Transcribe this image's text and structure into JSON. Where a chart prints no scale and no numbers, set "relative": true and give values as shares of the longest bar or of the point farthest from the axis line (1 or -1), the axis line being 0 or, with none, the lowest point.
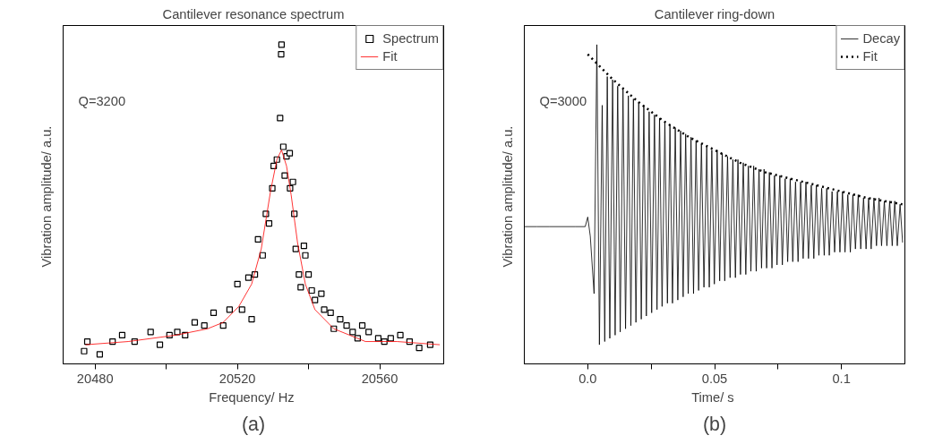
{
  "chart_data": [
    {
      "type": "scatter",
      "title": "Cantilever resonance spectrum",
      "xlabel": "Frequency/  Hz",
      "ylabel": "Vibration amplitude/  a.u.",
      "relative": true,
      "tick_labels": "x",
      "grid": false,
      "legend": "top right",
      "xlim": [
        20471,
        20578
      ],
      "xticks": [
        20480,
        {
          "value": 20500,
          "label": null
        },
        20520,
        {
          "value": 20540,
          "label": null
        },
        20560
      ],
      "annotations": [
        "Q=3200",
        "(a)"
      ],
      "series": [
        {
          "name": "Spectrum",
          "marker": "square",
          "color": "#000000",
          "x": [
            20476.9,
            20477.8,
            20481.3,
            20484.9,
            20487.6,
            20491.1,
            20495.6,
            20498.2,
            20500.9,
            20503.1,
            20505.3,
            20508,
            20510.7,
            20513.3,
            20516,
            20517.8,
            20520,
            20521.3,
            20523.1,
            20524,
            20524.9,
            20525.8,
            20527.1,
            20528,
            20528.9,
            20529.8,
            20530.2,
            20531.1,
            20532,
            20532.3,
            20532.4,
            20532.9,
            20533.3,
            20533.8,
            20534.7,
            20534.8,
            20535.6,
            20536,
            20536.4,
            20537.3,
            20537.8,
            20538.7,
            20539.1,
            20540,
            20540.9,
            20541.8,
            20543.6,
            20544.4,
            20546.2,
            20547.1,
            20548.9,
            20550.7,
            20552.4,
            20553.8,
            20555.1,
            20556.9,
            20559.6,
            20561.3,
            20563.1,
            20565.8,
            20568.4,
            20571.1,
            20574.2
          ],
          "values": [
            0.04,
            0.07,
            0.03,
            0.07,
            0.09,
            0.07,
            0.1,
            0.06,
            0.09,
            0.1,
            0.09,
            0.13,
            0.12,
            0.16,
            0.12,
            0.17,
            0.25,
            0.17,
            0.27,
            0.14,
            0.28,
            0.39,
            0.34,
            0.47,
            0.44,
            0.55,
            0.62,
            0.64,
            0.77,
            0.97,
            1.0,
            0.68,
            0.59,
            0.65,
            0.66,
            0.55,
            0.57,
            0.47,
            0.36,
            0.28,
            0.24,
            0.37,
            0.34,
            0.28,
            0.23,
            0.2,
            0.22,
            0.17,
            0.16,
            0.11,
            0.14,
            0.12,
            0.1,
            0.08,
            0.12,
            0.1,
            0.08,
            0.07,
            0.08,
            0.09,
            0.07,
            0.05,
            0.06
          ]
        },
        {
          "name": "Fit",
          "type": "line",
          "line_style": "solid",
          "color": "#ff0000",
          "x": [
            20477.3,
            20489.3,
            20502.7,
            20511.6,
            20516,
            20520.4,
            20524,
            20526.7,
            20529.3,
            20531.1,
            20532.4,
            20533.8,
            20535.1,
            20536.9,
            20539.1,
            20541.8,
            20547.1,
            20556,
            20564.9,
            20576.9
          ],
          "values": [
            0.06,
            0.07,
            0.09,
            0.11,
            0.13,
            0.18,
            0.25,
            0.36,
            0.54,
            0.64,
            0.67,
            0.62,
            0.53,
            0.38,
            0.25,
            0.17,
            0.11,
            0.07,
            0.07,
            0.06
          ]
        }
      ]
    },
    {
      "type": "line",
      "title": "Cantilever ring-down",
      "xlabel": "Time/  s",
      "ylabel": "Vibration amplitude/  a.u.",
      "relative": true,
      "tick_labels": "x",
      "grid": false,
      "legend": "top right",
      "xlim": [
        -0.025,
        0.125
      ],
      "xticks": [
        {
          "value": 0,
          "label": "0.0"
        },
        {
          "value": 0.025,
          "label": null
        },
        0.05,
        {
          "value": 0.075,
          "label": null
        },
        0.1
      ],
      "annotations": [
        "Q=3000",
        "(b)"
      ],
      "series": [
        {
          "name": "Decay",
          "line_style": "solid",
          "color": "#000000",
          "x": [
            -0.0248,
            -0.02,
            -0.015,
            -0.01,
            -0.005,
            -0.001,
            0.0,
            0.001,
            0.0025,
            0.0036,
            0.0046,
            0.0057,
            0.0067,
            0.0077,
            0.0087,
            0.0098,
            0.0108,
            0.0118,
            0.0128,
            0.0139,
            0.0149,
            0.016,
            0.017,
            0.018,
            0.019,
            0.0201,
            0.0211,
            0.0221,
            0.0231,
            0.0242,
            0.0252,
            0.0263,
            0.0273,
            0.0283,
            0.0293,
            0.0304,
            0.0314,
            0.0324,
            0.0334,
            0.0345,
            0.0355,
            0.0366,
            0.0376,
            0.0386,
            0.0396,
            0.0407,
            0.0417,
            0.0427,
            0.0437,
            0.0448,
            0.0458,
            0.0469,
            0.0479,
            0.0489,
            0.0499,
            0.051,
            0.052,
            0.053,
            0.054,
            0.0551,
            0.0561,
            0.0572,
            0.0582,
            0.0592,
            0.0602,
            0.0613,
            0.0623,
            0.0633,
            0.0643,
            0.0654,
            0.0664,
            0.0675,
            0.0685,
            0.0695,
            0.0705,
            0.0716,
            0.0726,
            0.0736,
            0.0746,
            0.0757,
            0.0767,
            0.0778,
            0.0788,
            0.0798,
            0.0808,
            0.0819,
            0.0829,
            0.0839,
            0.0849,
            0.086,
            0.087,
            0.0881,
            0.0891,
            0.0901,
            0.0911,
            0.0922,
            0.0932,
            0.0942,
            0.0952,
            0.0963,
            0.0973,
            0.0984,
            0.0994,
            0.1004,
            0.1014,
            0.1025,
            0.1035,
            0.1045,
            0.1055,
            0.1066,
            0.1076,
            0.1087,
            0.1097,
            0.1107,
            0.1117,
            0.1128,
            0.1138,
            0.1148,
            0.1158,
            0.1169,
            0.1179,
            0.119,
            0.12,
            0.121,
            0.122,
            0.1231,
            0.1241
          ],
          "values": [
            0.43,
            0.43,
            0.43,
            0.43,
            0.43,
            0.43,
            0.46,
            0.4,
            0.22,
            1.0,
            0.06,
            0.81,
            0.07,
            0.9,
            0.08,
            0.89,
            0.09,
            0.87,
            0.1,
            0.86,
            0.11,
            0.84,
            0.12,
            0.83,
            0.13,
            0.82,
            0.14,
            0.81,
            0.15,
            0.79,
            0.16,
            0.78,
            0.17,
            0.77,
            0.18,
            0.76,
            0.19,
            0.75,
            0.19,
            0.74,
            0.2,
            0.73,
            0.21,
            0.72,
            0.22,
            0.71,
            0.22,
            0.7,
            0.23,
            0.69,
            0.24,
            0.68,
            0.24,
            0.67,
            0.25,
            0.67,
            0.26,
            0.66,
            0.26,
            0.65,
            0.27,
            0.64,
            0.27,
            0.64,
            0.28,
            0.63,
            0.28,
            0.62,
            0.29,
            0.62,
            0.29,
            0.61,
            0.3,
            0.61,
            0.3,
            0.6,
            0.3,
            0.59,
            0.31,
            0.59,
            0.31,
            0.58,
            0.32,
            0.58,
            0.32,
            0.57,
            0.32,
            0.57,
            0.33,
            0.57,
            0.33,
            0.56,
            0.33,
            0.56,
            0.34,
            0.55,
            0.34,
            0.55,
            0.34,
            0.54,
            0.35,
            0.54,
            0.35,
            0.54,
            0.35,
            0.53,
            0.35,
            0.53,
            0.36,
            0.53,
            0.36,
            0.52,
            0.36,
            0.52,
            0.36,
            0.52,
            0.37,
            0.52,
            0.37,
            0.51,
            0.37,
            0.51,
            0.37,
            0.51,
            0.37,
            0.5,
            0.38
          ]
        },
        {
          "name": "Fit",
          "line_style": "dotted",
          "color": "#000000",
          "x": [
            0,
            0.01,
            0.02,
            0.03,
            0.04,
            0.05,
            0.06,
            0.07,
            0.08,
            0.09,
            0.1,
            0.11,
            0.124
          ],
          "values": [
            0.97,
            0.89,
            0.82,
            0.76,
            0.71,
            0.67,
            0.63,
            0.6,
            0.58,
            0.56,
            0.54,
            0.52,
            0.5
          ]
        }
      ]
    }
  ]
}
